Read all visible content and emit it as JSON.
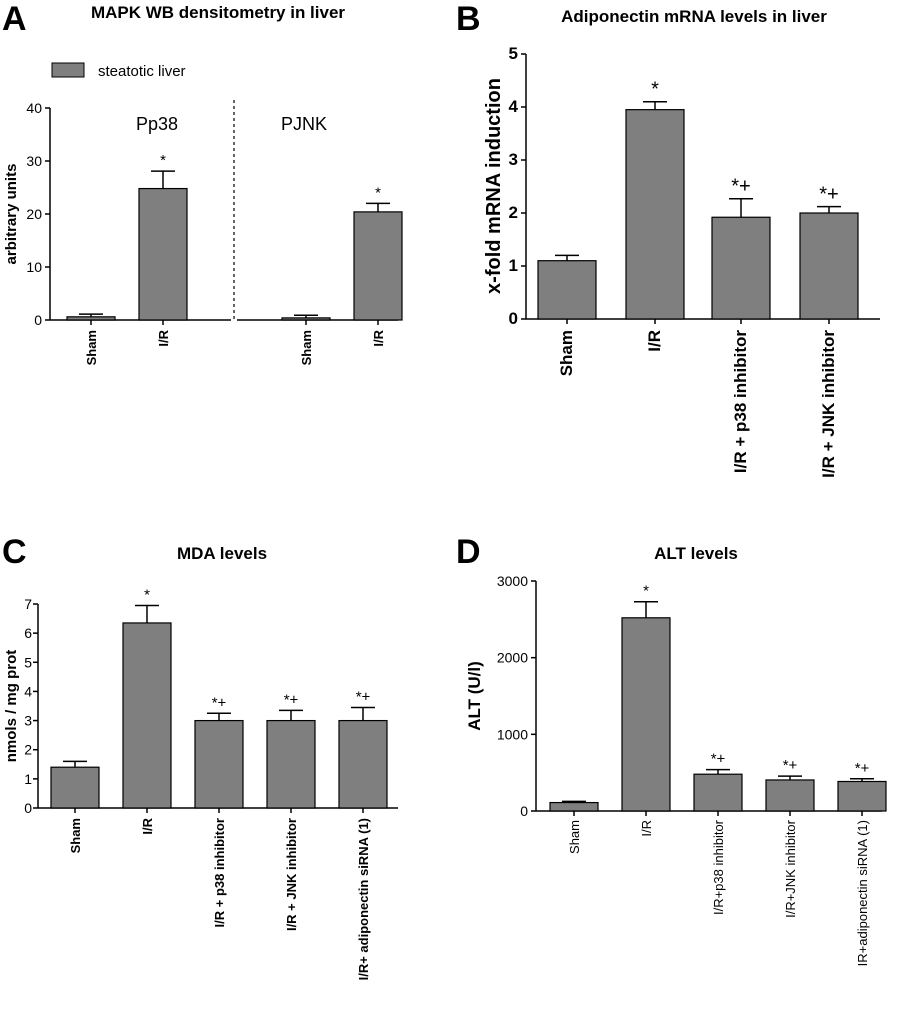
{
  "colors": {
    "bar": "#7f7f7f",
    "stroke": "#000000",
    "background": "#ffffff"
  },
  "chart_data": [
    {
      "panel": "A",
      "type": "bar",
      "title": "MAPK WB densitometry in liver",
      "ylabel": "arbitrary units",
      "ylim": [
        0,
        40
      ],
      "yticks": [
        "0",
        "10",
        "20",
        "30",
        "40"
      ],
      "legend": "steatotic liver",
      "group_labels": [
        "Pp38",
        "PJNK"
      ],
      "categories": [
        "Sham",
        "I/R",
        "Sham",
        "I/R"
      ],
      "series": [
        {
          "name": "steatotic liver",
          "values": [
            0.6,
            24.8,
            0.4,
            20.4
          ]
        }
      ],
      "errors": [
        0.5,
        3.3,
        0.5,
        1.6
      ],
      "annotations": [
        "",
        "*",
        "",
        "*"
      ]
    },
    {
      "panel": "B",
      "type": "bar",
      "title": "Adiponectin mRNA levels in liver",
      "ylabel": "x-fold mRNA induction",
      "ylim": [
        0,
        5
      ],
      "yticks": [
        "0",
        "1",
        "2",
        "3",
        "4",
        "5"
      ],
      "categories": [
        "Sham",
        "I/R",
        "I/R + p38 inhibitor",
        "I/R + JNK inhibitor"
      ],
      "values": [
        1.1,
        3.95,
        1.92,
        2.0
      ],
      "errors": [
        0.1,
        0.15,
        0.35,
        0.12
      ],
      "annotations": [
        "",
        "*",
        "*+",
        "*+"
      ]
    },
    {
      "panel": "C",
      "type": "bar",
      "title": "MDA levels",
      "ylabel": "nmols / mg prot",
      "ylim": [
        0,
        7
      ],
      "yticks": [
        "0",
        "1",
        "2",
        "3",
        "4",
        "5",
        "6",
        "7"
      ],
      "categories": [
        "Sham",
        "I/R",
        "I/R + p38 inhibitor",
        "I/R + JNK inhibitor",
        "I/R+ adiponectin siRNA (1)"
      ],
      "values": [
        1.4,
        6.35,
        3.0,
        3.0,
        3.0
      ],
      "errors": [
        0.2,
        0.6,
        0.25,
        0.35,
        0.45
      ],
      "annotations": [
        "",
        "*",
        "*+",
        "*+",
        "*+"
      ]
    },
    {
      "panel": "D",
      "type": "bar",
      "title": "ALT levels",
      "ylabel": "ALT (U/l)",
      "ylim": [
        0,
        3000
      ],
      "yticks": [
        "0",
        "1000",
        "2000",
        "3000"
      ],
      "categories": [
        "Sham",
        "I/R",
        "I/R+p38 inhibitor",
        "I/R+JNK inhibitor",
        "IR+adiponectin siRNA (1)"
      ],
      "values": [
        110,
        2520,
        480,
        405,
        385
      ],
      "errors": [
        15,
        210,
        60,
        50,
        35
      ],
      "annotations": [
        "",
        "*",
        "*+",
        "*+",
        "*+"
      ]
    }
  ]
}
